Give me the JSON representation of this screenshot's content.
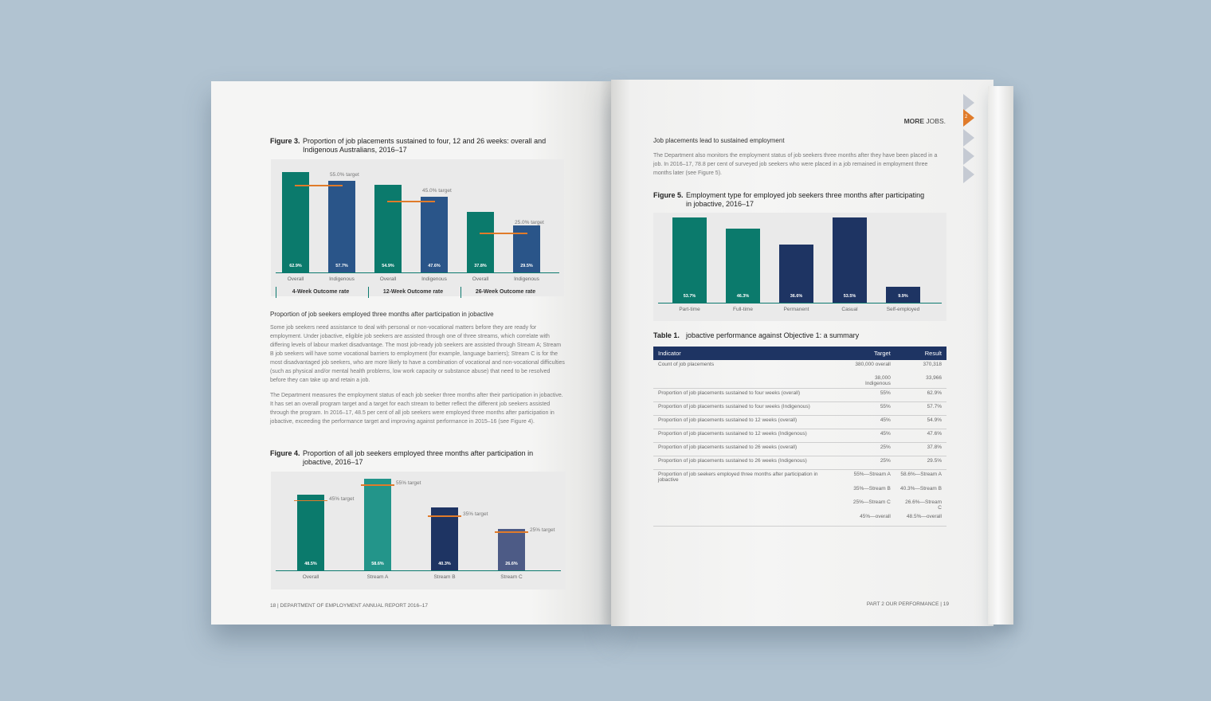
{
  "left_page": {
    "fig3": {
      "label": "Figure 3.",
      "title": "Proportion of job placements sustained to four, 12 and 26 weeks: overall and Indigenous Australians, 2016–17"
    },
    "section_heading": "Proportion of job seekers employed three months after participation in jobactive",
    "para1": "Some job seekers need assistance to deal with personal or non-vocational matters before they are ready for employment. Under jobactive, eligible job seekers are assisted through one of three streams, which correlate with differing levels of labour market disadvantage. The most job-ready job seekers are assisted through Stream A; Stream B job seekers will have some vocational barriers to employment (for example, language barriers); Stream C is for the most disadvantaged job seekers, who are more likely to have a combination of vocational and non-vocational difficulties (such as physical and/or mental health problems, low work capacity or substance abuse) that need to be resolved before they can take up and retain a job.",
    "para2": "The Department measures the employment status of each job seeker three months after their participation in jobactive. It has set an overall program target and a target for each stream to better reflect the different job seekers assisted through the program. In 2016–17, 48.5 per cent of all job seekers were employed three months after participation in jobactive, exceeding the performance target and improving against performance in 2015–16 (see Figure 4).",
    "fig4": {
      "label": "Figure 4.",
      "title": "Proportion of all job seekers employed three months after participation in jobactive, 2016–17"
    },
    "footer": "18 | DEPARTMENT OF EMPLOYMENT ANNUAL REPORT 2016–17"
  },
  "right_page": {
    "running_head_bold": "MORE",
    "running_head": " JOBS.",
    "tab_number": "2",
    "section_heading": "Job placements lead to sustained employment",
    "para1": "The Department also monitors the employment status of job seekers three months after they have been placed in a job. In 2016–17, 78.8 per cent of surveyed job seekers who were placed in a job remained in employment three months later (see Figure 5).",
    "fig5": {
      "label": "Figure 5.",
      "title": "Employment type for employed job seekers three months after participating in jobactive, 2016–17"
    },
    "table": {
      "label": "Table 1.",
      "title": "jobactive performance against Objective 1: a summary",
      "headers": [
        "Indicator",
        "Target",
        "Result"
      ],
      "rows": [
        [
          "Count of job placements",
          "380,000 overall",
          "370,318",
          true
        ],
        [
          "",
          "38,000 Indigenous",
          "33,966",
          false
        ],
        [
          "Proportion of job placements sustained to four weeks (overall)",
          "55%",
          "62.9%",
          true
        ],
        [
          "Proportion of job placements sustained to four weeks (Indigenous)",
          "55%",
          "57.7%",
          true
        ],
        [
          "Proportion of job placements sustained to 12 weeks (overall)",
          "45%",
          "54.9%",
          true
        ],
        [
          "Proportion of job placements sustained to 12 weeks (Indigenous)",
          "45%",
          "47.6%",
          true
        ],
        [
          "Proportion of job placements sustained to 26 weeks (overall)",
          "25%",
          "37.8%",
          true
        ],
        [
          "Proportion of job placements sustained to 26 weeks (Indigenous)",
          "25%",
          "29.5%",
          true
        ],
        [
          "Proportion of job seekers employed three months after participation in jobactive",
          "55%—Stream A",
          "58.6%—Stream A",
          true
        ],
        [
          "",
          "35%—Stream B",
          "40.3%—Stream B",
          false
        ],
        [
          "",
          "25%—Stream C",
          "26.6%—Stream C",
          false
        ],
        [
          "",
          "45%—overall",
          "48.5%—overall",
          false
        ]
      ]
    },
    "footer": "PART 2 OUR PERFORMANCE | 19"
  },
  "chart_data": [
    {
      "type": "bar",
      "title": "Proportion of job placements sustained to four, 12 and 26 weeks: overall and Indigenous Australians, 2016–17",
      "categories": [
        "Overall",
        "Indigenous",
        "Overall",
        "Indigenous",
        "Overall",
        "Indigenous"
      ],
      "groups": [
        "4-Week Outcome rate",
        "12-Week Outcome rate",
        "26-Week Outcome rate"
      ],
      "values": [
        62.9,
        57.7,
        54.9,
        47.6,
        37.8,
        29.5
      ],
      "labels": [
        "62.9%",
        "57.7%",
        "54.9%",
        "47.6%",
        "37.8%",
        "29.5%"
      ],
      "colors": [
        "#0b7a6c",
        "#2a5589",
        "#0b7a6c",
        "#2a5589",
        "#0b7a6c",
        "#2a5589"
      ],
      "targets": [
        {
          "value": 55,
          "label": "55.0% target"
        },
        {
          "value": 45,
          "label": "45.0% target"
        },
        {
          "value": 25,
          "label": "25.0% target"
        }
      ]
    },
    {
      "type": "bar",
      "title": "Proportion of all job seekers employed three months after participation in jobactive, 2016–17",
      "categories": [
        "Overall",
        "Stream A",
        "Stream B",
        "Stream C"
      ],
      "values": [
        48.5,
        58.6,
        40.3,
        26.6
      ],
      "labels": [
        "48.5%",
        "58.6%",
        "40.3%",
        "26.6%"
      ],
      "colors": [
        "#0b7a6c",
        "#23958a",
        "#1e3463",
        "#4d5b86"
      ],
      "targets": [
        {
          "value": 45,
          "label": "45% target"
        },
        {
          "value": 55,
          "label": "55% target"
        },
        {
          "value": 35,
          "label": "35% target"
        },
        {
          "value": 25,
          "label": "25% target"
        }
      ]
    },
    {
      "type": "bar",
      "title": "Employment type for employed job seekers three months after participating in jobactive, 2016–17",
      "categories": [
        "Part-time",
        "Full-time",
        "Permanent",
        "Casual",
        "Self-employed"
      ],
      "values": [
        53.7,
        46.3,
        36.6,
        53.5,
        9.9
      ],
      "labels": [
        "53.7%",
        "46.3%",
        "36.6%",
        "53.5%",
        "9.9%"
      ],
      "colors": [
        "#0b7a6c",
        "#0b7a6c",
        "#1e3463",
        "#1e3463",
        "#1e3463"
      ]
    }
  ]
}
